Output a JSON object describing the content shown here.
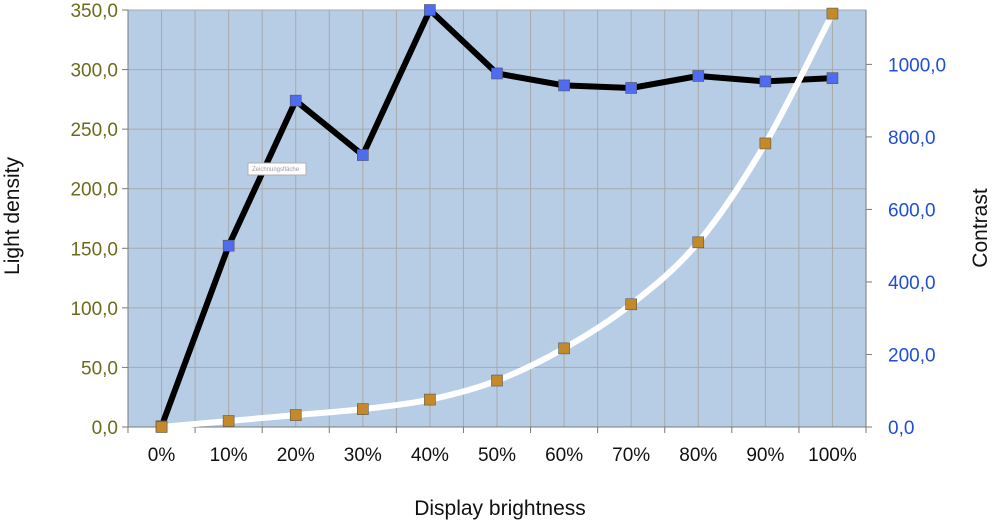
{
  "chart_data": {
    "type": "line",
    "x_categories": [
      "0%",
      "10%",
      "20%",
      "30%",
      "40%",
      "50%",
      "60%",
      "70%",
      "80%",
      "90%",
      "100%"
    ],
    "xlabel": "Display brightness",
    "ylabel_left": "Light density",
    "ylabel_right": "Contrast",
    "ylim_left": [
      0,
      350
    ],
    "ylim_right": [
      0,
      1150
    ],
    "yticks_left": [
      "0,0",
      "50,0",
      "100,0",
      "150,0",
      "200,0",
      "250,0",
      "300,0",
      "350,0"
    ],
    "yticks_right": [
      "0,0",
      "200,0",
      "400,0",
      "600,0",
      "800,0",
      "1000,0"
    ],
    "yticks_left_values": [
      0,
      50,
      100,
      150,
      200,
      250,
      300,
      350
    ],
    "yticks_right_values": [
      0,
      200,
      400,
      600,
      800,
      1000
    ],
    "grid": true,
    "series": [
      {
        "axis": "right",
        "line_color": "#000000",
        "marker_color": "#4f6cf0",
        "values": [
          2,
          500,
          900,
          750,
          1150,
          975,
          942,
          935,
          968,
          953,
          962
        ]
      },
      {
        "axis": "left",
        "line_color": "#ffffff",
        "marker_color": "#c48a2a",
        "values": [
          0,
          5,
          10,
          15,
          23,
          39,
          66,
          103,
          155,
          238,
          347
        ]
      }
    ],
    "colors": {
      "plot_bg": "#b7cde6",
      "grid": "#a9a9a9",
      "left_tick": "#6b6b1e",
      "right_tick": "#1f4fd6"
    }
  },
  "tooltip": {
    "label": "Zeichnungsfläche"
  }
}
